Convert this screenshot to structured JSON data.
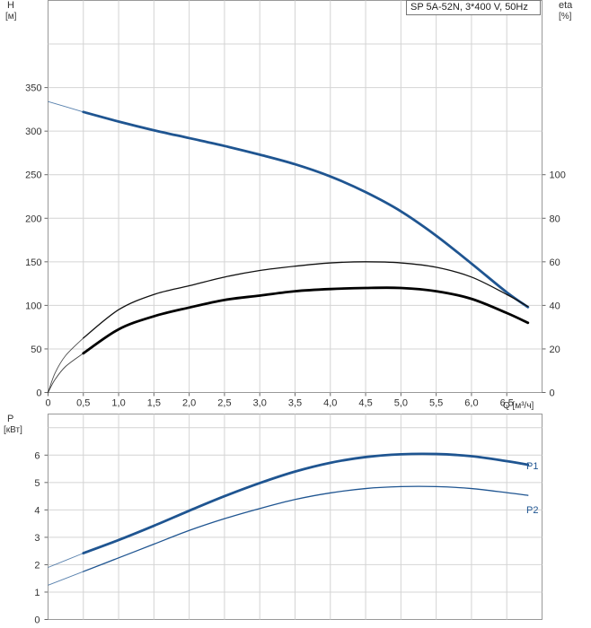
{
  "title": "SP 5A-52N, 3*400 V, 50Hz",
  "chart_data": [
    {
      "type": "line",
      "name": "head-efficiency-chart",
      "y_left_label": "H",
      "y_left_unit": "[м]",
      "y_right_label": "eta",
      "y_right_unit": "[%]",
      "x_unit_label": "Q [м³/ч]",
      "xlim": [
        0,
        7.0
      ],
      "ylim_left": [
        0,
        450
      ],
      "ylim_right": [
        0,
        180
      ],
      "x_ticks": [
        "0",
        "0,5",
        "1,0",
        "1,5",
        "2,0",
        "2,5",
        "3,0",
        "3,5",
        "4,0",
        "4,5",
        "5,0",
        "5,5",
        "6,0",
        "6,5"
      ],
      "y_left_ticks": [
        "0",
        "50",
        "100",
        "150",
        "200",
        "250",
        "300",
        "350"
      ],
      "y_right_ticks": [
        "0",
        "20",
        "40",
        "60",
        "80",
        "100"
      ],
      "grid": true,
      "series": [
        {
          "axis": "left",
          "color": "#1f5591",
          "thick": true,
          "x": [
            0.5,
            1.0,
            1.5,
            2.0,
            2.5,
            3.0,
            3.5,
            4.0,
            4.5,
            5.0,
            5.5,
            6.0,
            6.5,
            6.8
          ],
          "y": [
            322,
            311,
            301,
            292,
            283,
            273,
            262,
            248,
            230,
            208,
            180,
            148,
            115,
            98
          ],
          "ext_x": [
            0,
            0.5
          ],
          "ext_y": [
            334,
            322
          ]
        },
        {
          "axis": "right",
          "color": "#111111",
          "thick": false,
          "x": [
            0.5,
            1.0,
            1.5,
            2.0,
            2.5,
            3.0,
            3.5,
            4.0,
            4.5,
            5.0,
            5.5,
            6.0,
            6.5,
            6.8
          ],
          "y": [
            25,
            38,
            45,
            49,
            53,
            56,
            58,
            59.5,
            60,
            59.5,
            57.5,
            53,
            45,
            39.5
          ],
          "ext_x": [
            0,
            0.1,
            0.25,
            0.5
          ],
          "ext_y": [
            0,
            9,
            17,
            25
          ]
        },
        {
          "axis": "right",
          "color": "#000000",
          "thick": true,
          "x": [
            0.5,
            1.0,
            1.5,
            2.0,
            2.5,
            3.0,
            3.5,
            4.0,
            4.5,
            5.0,
            5.5,
            6.0,
            6.5,
            6.8
          ],
          "y": [
            18,
            29,
            35,
            39,
            42.5,
            44.5,
            46.5,
            47.5,
            48,
            48,
            46.5,
            43,
            36.5,
            32
          ],
          "ext_x": [
            0,
            0.1,
            0.25,
            0.5
          ],
          "ext_y": [
            0,
            6,
            12,
            18
          ]
        }
      ]
    },
    {
      "type": "line",
      "name": "power-chart",
      "y_label": "P",
      "y_unit": "[кВт]",
      "xlim": [
        0,
        7.0
      ],
      "ylim": [
        0,
        7.5
      ],
      "y_ticks": [
        "0",
        "1",
        "2",
        "3",
        "4",
        "5",
        "6"
      ],
      "grid": true,
      "series": [
        {
          "name": "P1",
          "color": "#1f5591",
          "thick": true,
          "x": [
            0.5,
            1.0,
            1.5,
            2.0,
            2.5,
            3.0,
            3.5,
            4.0,
            4.5,
            5.0,
            5.5,
            6.0,
            6.5,
            6.8
          ],
          "y": [
            2.42,
            2.9,
            3.42,
            3.97,
            4.5,
            4.98,
            5.4,
            5.72,
            5.93,
            6.03,
            6.04,
            5.96,
            5.78,
            5.65
          ],
          "ext_x": [
            0,
            0.5
          ],
          "ext_y": [
            1.9,
            2.42
          ]
        },
        {
          "name": "P2",
          "color": "#1f5591",
          "thick": false,
          "x": [
            0.5,
            1.0,
            1.5,
            2.0,
            2.5,
            3.0,
            3.5,
            4.0,
            4.5,
            5.0,
            5.5,
            6.0,
            6.5,
            6.8
          ],
          "y": [
            1.75,
            2.25,
            2.75,
            3.25,
            3.68,
            4.05,
            4.38,
            4.62,
            4.78,
            4.85,
            4.85,
            4.78,
            4.63,
            4.53
          ],
          "ext_x": [
            0,
            0.5
          ],
          "ext_y": [
            1.25,
            1.75
          ]
        }
      ]
    }
  ]
}
